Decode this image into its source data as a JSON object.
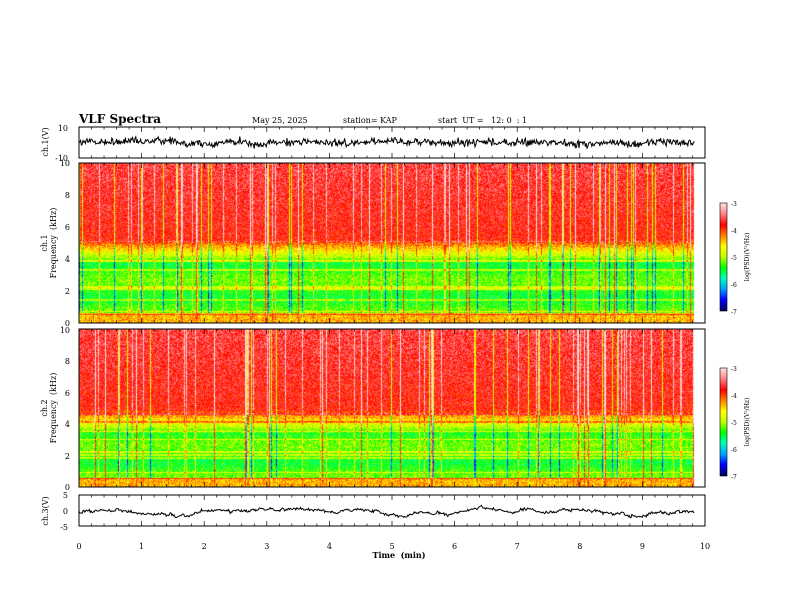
{
  "chart_data": {
    "type": "heatmap",
    "title": "VLF Spectra",
    "date": "May 25, 2025",
    "station": "station= KAP",
    "start_time": "start  UT =   12: 0  : 1",
    "time_axis": {
      "label": "Time  (min)",
      "range": [
        0,
        10
      ],
      "ticks": [
        "0",
        "1",
        "2",
        "3",
        "4",
        "5",
        "6",
        "7",
        "8",
        "9",
        "10"
      ],
      "data_extent_min": 9.83
    },
    "panels": [
      {
        "name": "ch1-waveform",
        "type": "line",
        "ylabel": "ch.1(V)",
        "ylim": [
          -10,
          10
        ],
        "yticks": [
          "10",
          "-10"
        ],
        "mean_value": 0,
        "noise_amplitude": 4.5
      },
      {
        "name": "ch1-spectrogram",
        "type": "heatmap",
        "channel_label": "ch.1",
        "ylabel": "Frequency  (kHz)",
        "ylim": [
          0,
          10
        ],
        "yticks": [
          "0",
          "2",
          "4",
          "6",
          "8",
          "10"
        ],
        "band_edges_khz": [
          0.6,
          3.8,
          5.2
        ],
        "line_freqs_khz": [
          0.5,
          0.7,
          1.4,
          2.1,
          2.25,
          3.3,
          3.85,
          5.1
        ],
        "colorbar": {
          "label": "log(PSD)(V²/Hz)",
          "range": [
            -7,
            -3
          ],
          "ticks": [
            "-3",
            "-4",
            "-5",
            "-6",
            "-7"
          ]
        }
      },
      {
        "name": "ch2-spectrogram",
        "type": "heatmap",
        "channel_label": "ch.2",
        "ylabel": "Frequency  (kHz)",
        "ylim": [
          0,
          10
        ],
        "yticks": [
          "0",
          "2",
          "4",
          "6",
          "8",
          "10"
        ],
        "band_edges_khz": [
          0.55,
          3.4,
          4.9
        ],
        "line_freqs_khz": [
          0.5,
          0.9,
          1.8,
          2.0,
          2.2,
          3.0,
          3.5,
          4.1,
          4.6
        ],
        "colorbar": {
          "label": "log(PSD)(V²/Hz)",
          "range": [
            -7,
            -3
          ],
          "ticks": [
            "-3",
            "-4",
            "-5",
            "-6",
            "-7"
          ]
        }
      },
      {
        "name": "ch3-waveform",
        "type": "line",
        "ylabel": "ch.3(V)",
        "ylim": [
          -5,
          5
        ],
        "yticks": [
          "5",
          "0",
          "-5"
        ],
        "mean_value": -0.3,
        "noise_amplitude": 0.6
      }
    ],
    "colormap": [
      "#000060",
      "#0000ff",
      "#00a0ff",
      "#00ffc0",
      "#00ff00",
      "#c0ff00",
      "#ffff00",
      "#ff8000",
      "#ff0000",
      "#ff8080",
      "#ffe0e0"
    ]
  }
}
